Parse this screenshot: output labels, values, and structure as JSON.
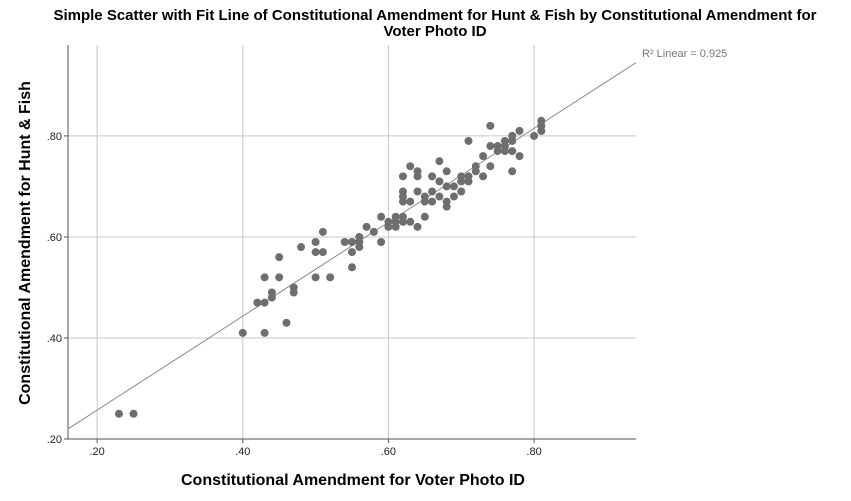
{
  "chart_data": {
    "type": "scatter",
    "title": "Simple Scatter with Fit Line of Constitutional Amendment for Hunt & Fish  by Constitutional Amendment for Voter Photo ID",
    "xlabel": "Constitutional Amendment for Voter Photo ID",
    "ylabel": "Constitutional Amendment for Hunt & Fish",
    "xlim": [
      0.16,
      0.94
    ],
    "ylim": [
      0.2,
      0.98
    ],
    "x_ticks": [
      0.2,
      0.4,
      0.6,
      0.8
    ],
    "y_ticks": [
      0.2,
      0.4,
      0.6,
      0.8
    ],
    "x_tick_labels": [
      ".20",
      ".40",
      ".60",
      ".80"
    ],
    "y_tick_labels": [
      ".20",
      ".40",
      ".60",
      ".80"
    ],
    "grid": true,
    "point_color": "#6e6e6e",
    "fit_line": {
      "label": "R² Linear = 0.925",
      "points": [
        [
          0.16,
          0.22
        ],
        [
          0.94,
          0.945
        ]
      ],
      "color": "#888888"
    },
    "points": [
      [
        0.23,
        0.25
      ],
      [
        0.25,
        0.25
      ],
      [
        0.4,
        0.41
      ],
      [
        0.42,
        0.47
      ],
      [
        0.43,
        0.52
      ],
      [
        0.43,
        0.47
      ],
      [
        0.43,
        0.41
      ],
      [
        0.44,
        0.49
      ],
      [
        0.44,
        0.48
      ],
      [
        0.45,
        0.56
      ],
      [
        0.45,
        0.52
      ],
      [
        0.46,
        0.43
      ],
      [
        0.47,
        0.5
      ],
      [
        0.47,
        0.49
      ],
      [
        0.48,
        0.58
      ],
      [
        0.5,
        0.59
      ],
      [
        0.5,
        0.57
      ],
      [
        0.5,
        0.52
      ],
      [
        0.51,
        0.61
      ],
      [
        0.51,
        0.57
      ],
      [
        0.52,
        0.52
      ],
      [
        0.54,
        0.59
      ],
      [
        0.55,
        0.59
      ],
      [
        0.55,
        0.57
      ],
      [
        0.55,
        0.54
      ],
      [
        0.56,
        0.6
      ],
      [
        0.56,
        0.59
      ],
      [
        0.56,
        0.58
      ],
      [
        0.57,
        0.62
      ],
      [
        0.58,
        0.61
      ],
      [
        0.59,
        0.64
      ],
      [
        0.59,
        0.59
      ],
      [
        0.6,
        0.63
      ],
      [
        0.6,
        0.62
      ],
      [
        0.61,
        0.64
      ],
      [
        0.61,
        0.63
      ],
      [
        0.61,
        0.62
      ],
      [
        0.62,
        0.72
      ],
      [
        0.62,
        0.69
      ],
      [
        0.62,
        0.68
      ],
      [
        0.62,
        0.67
      ],
      [
        0.62,
        0.64
      ],
      [
        0.62,
        0.63
      ],
      [
        0.63,
        0.74
      ],
      [
        0.63,
        0.67
      ],
      [
        0.63,
        0.63
      ],
      [
        0.64,
        0.73
      ],
      [
        0.64,
        0.72
      ],
      [
        0.64,
        0.69
      ],
      [
        0.64,
        0.62
      ],
      [
        0.65,
        0.68
      ],
      [
        0.65,
        0.67
      ],
      [
        0.65,
        0.64
      ],
      [
        0.66,
        0.72
      ],
      [
        0.66,
        0.69
      ],
      [
        0.66,
        0.67
      ],
      [
        0.67,
        0.75
      ],
      [
        0.67,
        0.71
      ],
      [
        0.67,
        0.68
      ],
      [
        0.68,
        0.73
      ],
      [
        0.68,
        0.7
      ],
      [
        0.68,
        0.67
      ],
      [
        0.68,
        0.66
      ],
      [
        0.69,
        0.7
      ],
      [
        0.69,
        0.68
      ],
      [
        0.7,
        0.72
      ],
      [
        0.7,
        0.71
      ],
      [
        0.7,
        0.69
      ],
      [
        0.71,
        0.79
      ],
      [
        0.71,
        0.72
      ],
      [
        0.71,
        0.71
      ],
      [
        0.72,
        0.74
      ],
      [
        0.72,
        0.73
      ],
      [
        0.73,
        0.76
      ],
      [
        0.73,
        0.72
      ],
      [
        0.74,
        0.82
      ],
      [
        0.74,
        0.78
      ],
      [
        0.74,
        0.74
      ],
      [
        0.75,
        0.78
      ],
      [
        0.75,
        0.77
      ],
      [
        0.76,
        0.79
      ],
      [
        0.76,
        0.78
      ],
      [
        0.76,
        0.77
      ],
      [
        0.77,
        0.8
      ],
      [
        0.77,
        0.79
      ],
      [
        0.77,
        0.77
      ],
      [
        0.77,
        0.73
      ],
      [
        0.78,
        0.81
      ],
      [
        0.78,
        0.76
      ],
      [
        0.8,
        0.8
      ],
      [
        0.81,
        0.83
      ],
      [
        0.81,
        0.82
      ],
      [
        0.81,
        0.81
      ]
    ]
  }
}
